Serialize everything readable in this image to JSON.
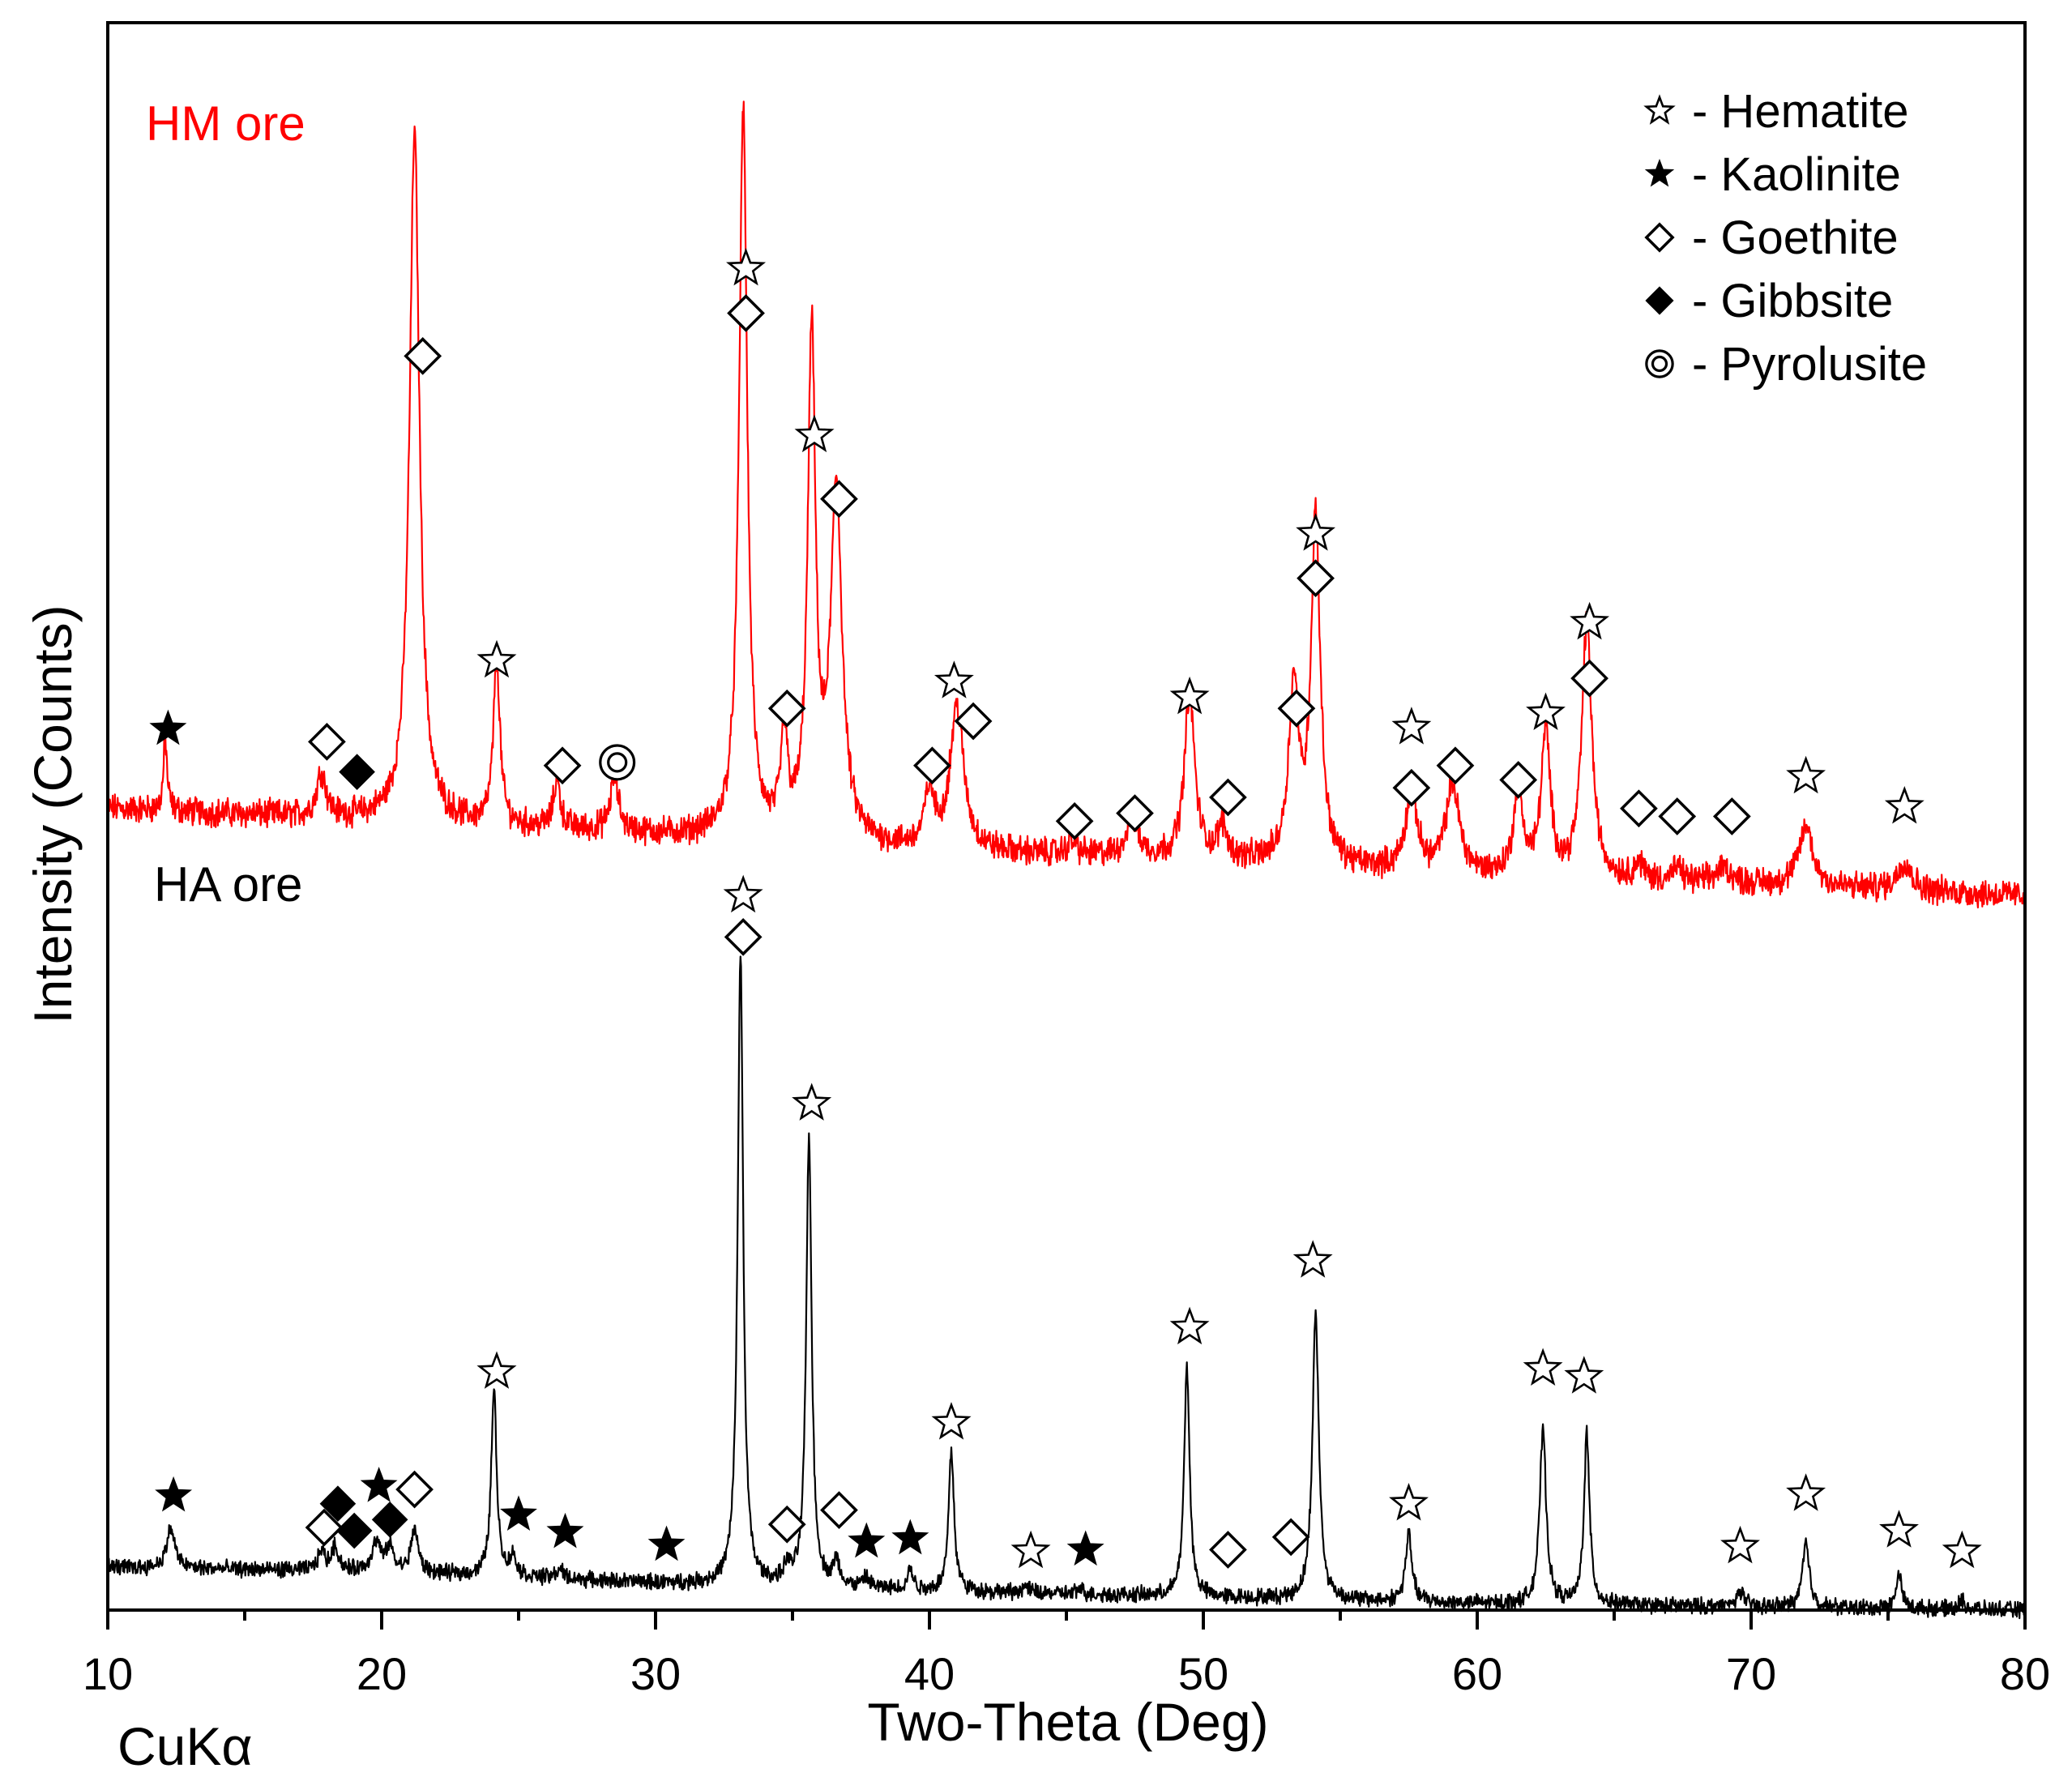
{
  "chart_data": {
    "type": "line",
    "title": "",
    "xlabel": "Two-Theta (Deg)",
    "ylabel": "Intensity (Counts)",
    "xlim": [
      10,
      80
    ],
    "x_ticks": [
      10,
      20,
      30,
      40,
      50,
      60,
      70,
      80
    ],
    "x_tick_labels": [
      "10",
      "20",
      "30",
      "40",
      "50",
      "60",
      "70",
      "80"
    ],
    "radiation_label": "CuKα",
    "grid": false,
    "legend_position": "top-right",
    "legend": [
      {
        "symbol": "☆",
        "kind": "hollow-star",
        "label": "- Hematite"
      },
      {
        "symbol": "★",
        "kind": "solid-star",
        "label": "- Kaolinite"
      },
      {
        "symbol": "◇",
        "kind": "hollow-diamond",
        "label": "- Goethite"
      },
      {
        "symbol": "◆",
        "kind": "solid-diamond",
        "label": "- Gibbsite"
      },
      {
        "symbol": "◎",
        "kind": "bullseye",
        "label": "- Pyrolusite"
      }
    ],
    "colors": {
      "hm": "#ff0000",
      "ha": "#000000"
    },
    "ylim": [
      0,
      1000
    ],
    "series": [
      {
        "name": "HM ore",
        "color": "#ff0000",
        "baseline": [
          [
            10,
            505
          ],
          [
            20,
            497
          ],
          [
            30,
            488
          ],
          [
            40,
            478
          ],
          [
            50,
            472
          ],
          [
            60,
            462
          ],
          [
            70,
            457
          ],
          [
            80,
            450
          ]
        ],
        "noise": 9,
        "peaks": [
          [
            12.1,
            45,
            0.08
          ],
          [
            17.8,
            28,
            0.2
          ],
          [
            21.2,
            435,
            0.22
          ],
          [
            24.2,
            105,
            0.14
          ],
          [
            26.4,
            30,
            0.15
          ],
          [
            28.5,
            34,
            0.18
          ],
          [
            33.2,
            460,
            0.18
          ],
          [
            34.7,
            60,
            0.15
          ],
          [
            35.7,
            315,
            0.17
          ],
          [
            36.6,
            220,
            0.25
          ],
          [
            40.0,
            35,
            0.2
          ],
          [
            41.0,
            90,
            0.3
          ],
          [
            45.2,
            8,
            0.2
          ],
          [
            47.4,
            25,
            0.25
          ],
          [
            49.5,
            105,
            0.22
          ],
          [
            50.7,
            20,
            0.2
          ],
          [
            53.3,
            110,
            0.22
          ],
          [
            54.1,
            220,
            0.2
          ],
          [
            57.6,
            50,
            0.25
          ],
          [
            59.1,
            55,
            0.3
          ],
          [
            61.5,
            55,
            0.2
          ],
          [
            62.5,
            90,
            0.2
          ],
          [
            64.0,
            160,
            0.22
          ],
          [
            65.9,
            10,
            0.2
          ],
          [
            67.3,
            8,
            0.2
          ],
          [
            69.0,
            10,
            0.3
          ],
          [
            72.0,
            38,
            0.3
          ],
          [
            75.6,
            18,
            0.3
          ]
        ],
        "markers": [
          {
            "x": 12.2,
            "kind": "solid-star",
            "y": 555
          },
          {
            "x": 18.0,
            "kind": "hollow-diamond",
            "y": 547
          },
          {
            "x": 19.1,
            "kind": "solid-diamond",
            "y": 528
          },
          {
            "x": 21.5,
            "kind": "hollow-diamond",
            "y": 790
          },
          {
            "x": 24.2,
            "kind": "hollow-star",
            "y": 598
          },
          {
            "x": 26.6,
            "kind": "hollow-diamond",
            "y": 532
          },
          {
            "x": 28.6,
            "kind": "bullseye",
            "y": 534
          },
          {
            "x": 33.3,
            "kind": "hollow-star",
            "y": 845
          },
          {
            "x": 33.3,
            "kind": "hollow-diamond",
            "y": 817
          },
          {
            "x": 34.8,
            "kind": "hollow-diamond",
            "y": 568
          },
          {
            "x": 35.8,
            "kind": "hollow-star",
            "y": 740
          },
          {
            "x": 36.7,
            "kind": "hollow-diamond",
            "y": 700
          },
          {
            "x": 40.1,
            "kind": "hollow-diamond",
            "y": 532
          },
          {
            "x": 40.9,
            "kind": "hollow-star",
            "y": 585
          },
          {
            "x": 41.6,
            "kind": "hollow-diamond",
            "y": 560
          },
          {
            "x": 45.3,
            "kind": "hollow-diamond",
            "y": 497
          },
          {
            "x": 47.5,
            "kind": "hollow-diamond",
            "y": 502
          },
          {
            "x": 49.5,
            "kind": "hollow-star",
            "y": 575
          },
          {
            "x": 50.9,
            "kind": "hollow-diamond",
            "y": 512
          },
          {
            "x": 53.4,
            "kind": "hollow-diamond",
            "y": 568
          },
          {
            "x": 54.1,
            "kind": "hollow-star",
            "y": 678
          },
          {
            "x": 54.1,
            "kind": "hollow-diamond",
            "y": 650
          },
          {
            "x": 57.6,
            "kind": "hollow-star",
            "y": 556
          },
          {
            "x": 57.6,
            "kind": "hollow-diamond",
            "y": 518
          },
          {
            "x": 59.2,
            "kind": "hollow-diamond",
            "y": 532
          },
          {
            "x": 61.5,
            "kind": "hollow-diamond",
            "y": 523
          },
          {
            "x": 62.5,
            "kind": "hollow-star",
            "y": 565
          },
          {
            "x": 64.1,
            "kind": "hollow-star",
            "y": 622
          },
          {
            "x": 64.1,
            "kind": "hollow-diamond",
            "y": 587
          },
          {
            "x": 65.9,
            "kind": "hollow-diamond",
            "y": 505
          },
          {
            "x": 67.3,
            "kind": "hollow-diamond",
            "y": 500
          },
          {
            "x": 69.3,
            "kind": "hollow-diamond",
            "y": 500
          },
          {
            "x": 72.0,
            "kind": "hollow-star",
            "y": 525
          },
          {
            "x": 75.6,
            "kind": "hollow-star",
            "y": 506
          }
        ]
      },
      {
        "name": "HA ore",
        "color": "#000000",
        "baseline": [
          [
            10,
            27
          ],
          [
            20,
            24
          ],
          [
            30,
            17
          ],
          [
            40,
            12
          ],
          [
            50,
            8
          ],
          [
            60,
            4
          ],
          [
            70,
            2
          ],
          [
            80,
            0
          ]
        ],
        "noise": 5,
        "peaks": [
          [
            12.3,
            25,
            0.18
          ],
          [
            17.8,
            12,
            0.15
          ],
          [
            18.3,
            15,
            0.15
          ],
          [
            19.8,
            18,
            0.2
          ],
          [
            20.3,
            15,
            0.15
          ],
          [
            21.2,
            28,
            0.15
          ],
          [
            24.1,
            117,
            0.12
          ],
          [
            24.8,
            12,
            0.15
          ],
          [
            26.5,
            6,
            0.15
          ],
          [
            33.1,
            398,
            0.12
          ],
          [
            34.8,
            10,
            0.15
          ],
          [
            35.6,
            283,
            0.12
          ],
          [
            36.6,
            15,
            0.15
          ],
          [
            37.7,
            6,
            0.15
          ],
          [
            39.3,
            13,
            0.12
          ],
          [
            40.8,
            88,
            0.12
          ],
          [
            43.5,
            4,
            0.15
          ],
          [
            45.5,
            3,
            0.15
          ],
          [
            49.4,
            145,
            0.12
          ],
          [
            54.1,
            180,
            0.14
          ],
          [
            57.5,
            42,
            0.14
          ],
          [
            62.4,
            110,
            0.14
          ],
          [
            64.0,
            108,
            0.12
          ],
          [
            69.6,
            10,
            0.15
          ],
          [
            72.0,
            40,
            0.15
          ],
          [
            75.4,
            22,
            0.12
          ],
          [
            77.7,
            5,
            0.15
          ]
        ],
        "markers": [
          {
            "x": 12.4,
            "kind": "solid-star",
            "y": 72
          },
          {
            "x": 17.9,
            "kind": "hollow-diamond",
            "y": 52
          },
          {
            "x": 18.4,
            "kind": "solid-diamond",
            "y": 67
          },
          {
            "x": 19.0,
            "kind": "solid-diamond",
            "y": 50
          },
          {
            "x": 19.9,
            "kind": "solid-star",
            "y": 78
          },
          {
            "x": 20.3,
            "kind": "solid-diamond",
            "y": 57
          },
          {
            "x": 21.2,
            "kind": "hollow-diamond",
            "y": 76
          },
          {
            "x": 24.2,
            "kind": "hollow-star",
            "y": 150
          },
          {
            "x": 25.0,
            "kind": "solid-star",
            "y": 60
          },
          {
            "x": 26.7,
            "kind": "solid-star",
            "y": 49
          },
          {
            "x": 30.4,
            "kind": "solid-star",
            "y": 41
          },
          {
            "x": 33.2,
            "kind": "hollow-star",
            "y": 450
          },
          {
            "x": 33.2,
            "kind": "hollow-diamond",
            "y": 424
          },
          {
            "x": 34.8,
            "kind": "hollow-diamond",
            "y": 54
          },
          {
            "x": 35.7,
            "kind": "hollow-star",
            "y": 319
          },
          {
            "x": 36.7,
            "kind": "hollow-diamond",
            "y": 63
          },
          {
            "x": 37.7,
            "kind": "solid-star",
            "y": 43
          },
          {
            "x": 39.3,
            "kind": "solid-star",
            "y": 45
          },
          {
            "x": 40.8,
            "kind": "hollow-star",
            "y": 118
          },
          {
            "x": 43.7,
            "kind": "hollow-star",
            "y": 37
          },
          {
            "x": 45.7,
            "kind": "solid-star",
            "y": 38
          },
          {
            "x": 49.5,
            "kind": "hollow-star",
            "y": 178
          },
          {
            "x": 50.9,
            "kind": "hollow-diamond",
            "y": 38
          },
          {
            "x": 53.2,
            "kind": "hollow-diamond",
            "y": 46
          },
          {
            "x": 54.0,
            "kind": "hollow-star",
            "y": 220
          },
          {
            "x": 57.5,
            "kind": "hollow-star",
            "y": 67
          },
          {
            "x": 62.4,
            "kind": "hollow-star",
            "y": 152
          },
          {
            "x": 63.9,
            "kind": "hollow-star",
            "y": 147
          },
          {
            "x": 69.6,
            "kind": "hollow-star",
            "y": 40
          },
          {
            "x": 72.0,
            "kind": "hollow-star",
            "y": 73
          },
          {
            "x": 75.4,
            "kind": "hollow-star",
            "y": 50
          },
          {
            "x": 77.7,
            "kind": "hollow-star",
            "y": 37
          }
        ]
      }
    ]
  }
}
